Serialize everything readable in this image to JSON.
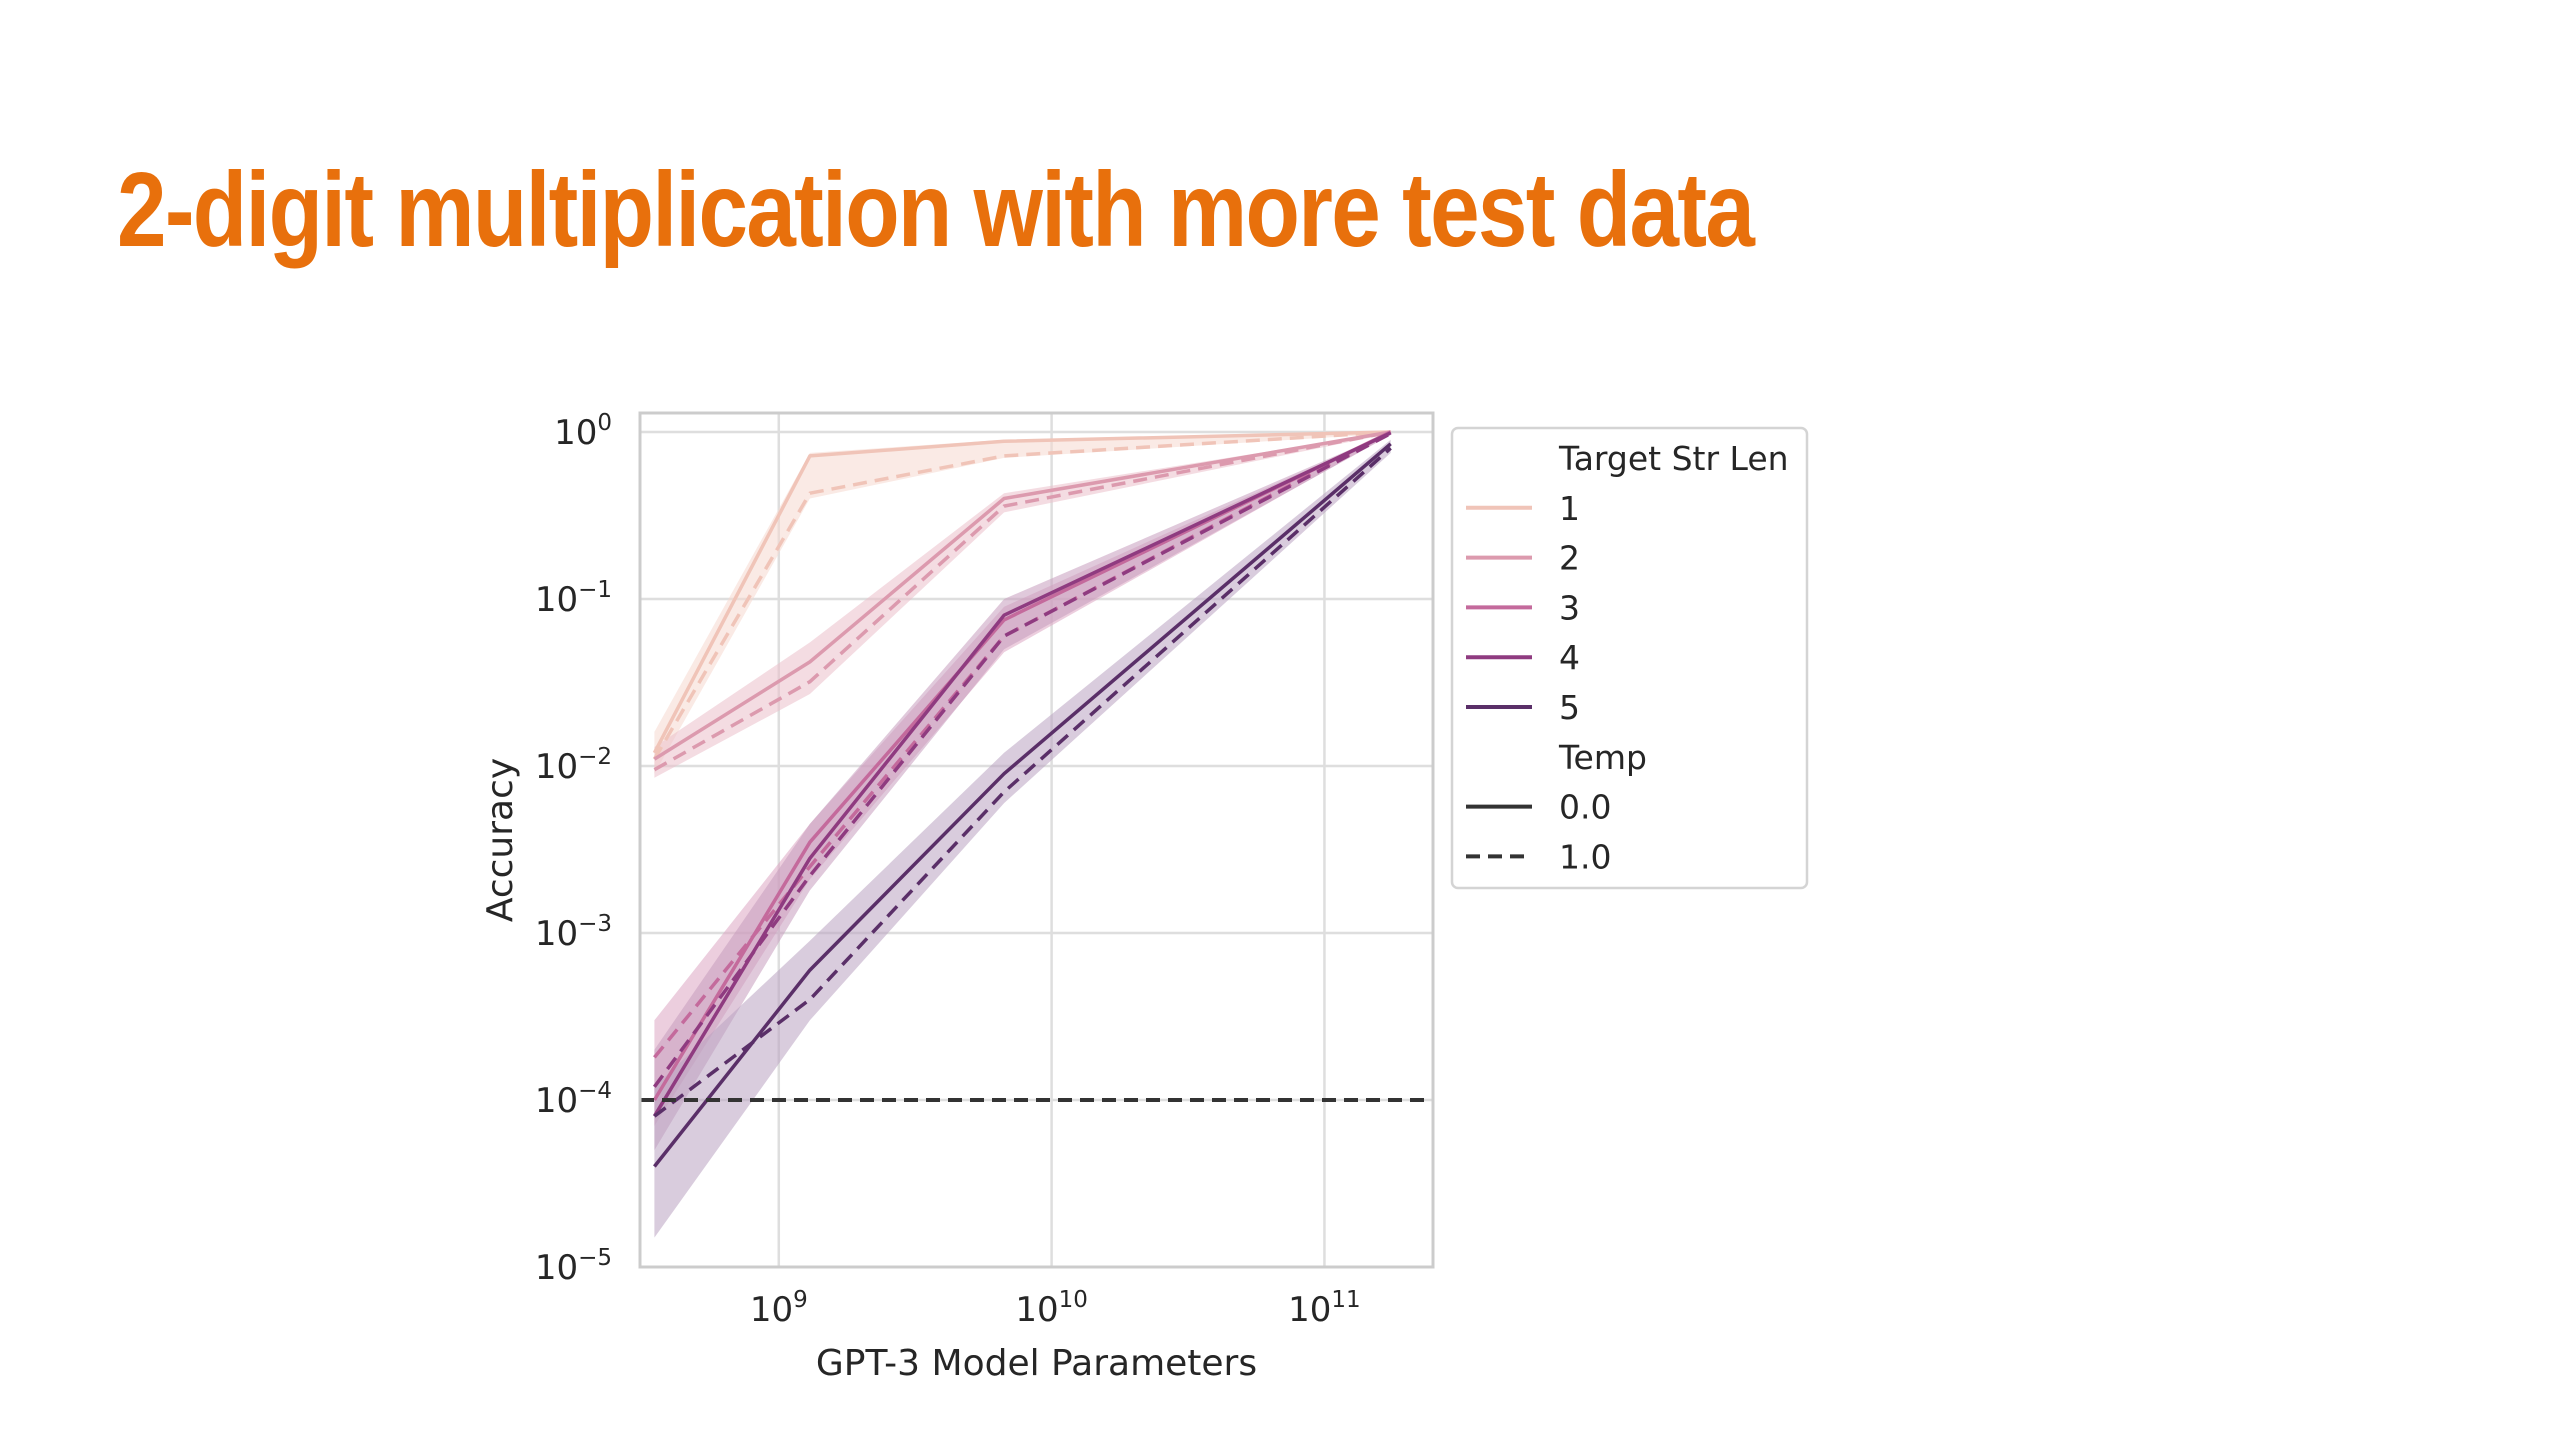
{
  "slide": {
    "title": "2-digit multiplication with more test data",
    "title_color": "#E8700C"
  },
  "chart_data": {
    "type": "line",
    "xlabel": "GPT-3 Model Parameters",
    "ylabel": "Accuracy",
    "x_scale": "log",
    "y_scale": "log",
    "xlim": [
      310000000,
      250000000000
    ],
    "ylim": [
      1e-05,
      1.3
    ],
    "x_ticks": [
      {
        "value": 1000000000,
        "base": "10",
        "exp": "9"
      },
      {
        "value": 10000000000,
        "base": "10",
        "exp": "10"
      },
      {
        "value": 100000000000,
        "base": "10",
        "exp": "11"
      }
    ],
    "y_ticks": [
      {
        "value": 1,
        "base": "10",
        "exp": "0"
      },
      {
        "value": 0.1,
        "base": "10",
        "exp": "−1"
      },
      {
        "value": 0.01,
        "base": "10",
        "exp": "−2"
      },
      {
        "value": 0.001,
        "base": "10",
        "exp": "−3"
      },
      {
        "value": 0.0001,
        "base": "10",
        "exp": "−4"
      },
      {
        "value": 1e-05,
        "base": "10",
        "exp": "−5"
      }
    ],
    "grid": true,
    "x": [
      350000000,
      1300000000,
      6700000000,
      175000000000
    ],
    "legend": {
      "placement": "outside-right",
      "hue_title": "Target Str Len",
      "style_title": "Temp",
      "styles": [
        {
          "label": "0.0",
          "dash": "solid"
        },
        {
          "label": "1.0",
          "dash": "dashed"
        }
      ]
    },
    "series": [
      {
        "name": "1",
        "color": "#F0C4B8",
        "fill": "#F5D8CF",
        "temp_0": [
          0.012,
          0.72,
          0.88,
          1.0
        ],
        "temp_1": [
          0.011,
          0.43,
          0.72,
          1.0
        ],
        "band_low": [
          0.009,
          0.4,
          0.7,
          0.98
        ],
        "band_high": [
          0.016,
          0.75,
          0.9,
          1.0
        ]
      },
      {
        "name": "2",
        "color": "#DC9AAE",
        "fill": "#EBBFCB",
        "temp_0": [
          0.011,
          0.042,
          0.4,
          1.0
        ],
        "temp_1": [
          0.0095,
          0.032,
          0.36,
          1.0
        ],
        "band_low": [
          0.0085,
          0.027,
          0.33,
          0.98
        ],
        "band_high": [
          0.013,
          0.055,
          0.43,
          1.0
        ]
      },
      {
        "name": "3",
        "color": "#C46A9C",
        "fill": "#DDA6C3",
        "temp_0": [
          0.0001,
          0.0035,
          0.075,
          1.0
        ],
        "temp_1": [
          0.00018,
          0.0025,
          0.06,
          1.0
        ],
        "band_low": [
          7e-05,
          0.0021,
          0.048,
          0.97
        ],
        "band_high": [
          0.0003,
          0.0045,
          0.09,
          1.0
        ]
      },
      {
        "name": "4",
        "color": "#8F3B80",
        "fill": "#C79CBE",
        "temp_0": [
          8e-05,
          0.0028,
          0.08,
          0.99
        ],
        "temp_1": [
          0.00012,
          0.0022,
          0.06,
          0.98
        ],
        "band_low": [
          5e-05,
          0.0018,
          0.05,
          0.96
        ],
        "band_high": [
          0.0002,
          0.0045,
          0.1,
          1.0
        ]
      },
      {
        "name": "5",
        "color": "#5A2F68",
        "fill": "#B9A2C1",
        "temp_0": [
          4e-05,
          0.0006,
          0.009,
          0.85
        ],
        "temp_1": [
          8e-05,
          0.0004,
          0.007,
          0.8
        ],
        "band_low": [
          1.5e-05,
          0.0003,
          0.006,
          0.75
        ],
        "band_high": [
          0.00012,
          0.0009,
          0.012,
          0.9
        ]
      }
    ],
    "reference_line": {
      "y": 0.0001,
      "style": "dashed",
      "color": "#333333"
    }
  }
}
